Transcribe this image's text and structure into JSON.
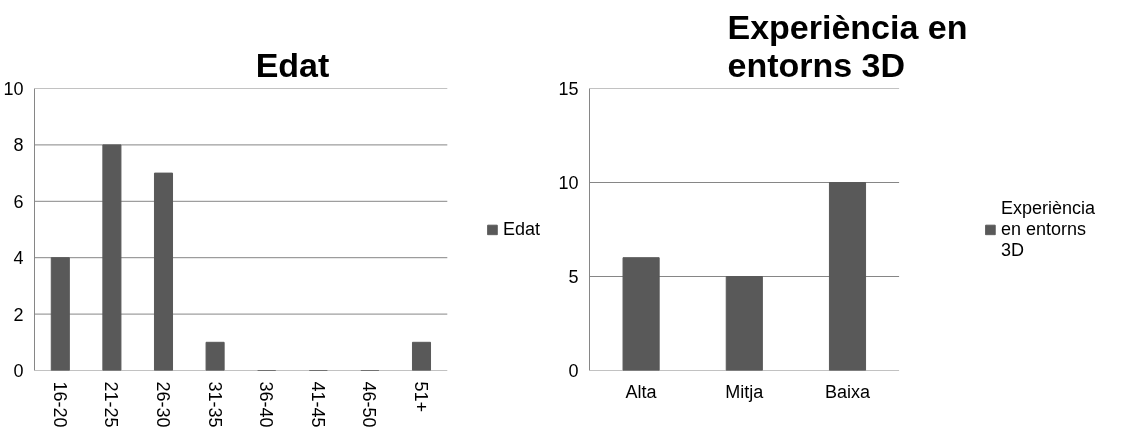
{
  "chart_data": [
    {
      "type": "bar",
      "title": "Edat",
      "categories": [
        "16-20",
        "21-25",
        "26-30",
        "31-35",
        "36-40",
        "41-45",
        "46-50",
        "51+"
      ],
      "series": [
        {
          "name": "Edat",
          "color": "#595959",
          "values": [
            4,
            8,
            7,
            1,
            0,
            0,
            0,
            1
          ]
        }
      ],
      "ylim": [
        0,
        10
      ],
      "yticks": [
        0,
        2,
        4,
        6,
        8,
        10
      ],
      "grid": "y",
      "legend": "right"
    },
    {
      "type": "bar",
      "title": "Experiència en entorns 3D",
      "categories": [
        "Alta",
        "Mitja",
        "Baixa"
      ],
      "series": [
        {
          "name": "Experiència en entorns 3D",
          "color": "#595959",
          "values": [
            6,
            5,
            10
          ]
        }
      ],
      "ylim": [
        0,
        15
      ],
      "yticks": [
        0,
        5,
        10,
        15
      ],
      "grid": "y",
      "legend": "right"
    }
  ]
}
